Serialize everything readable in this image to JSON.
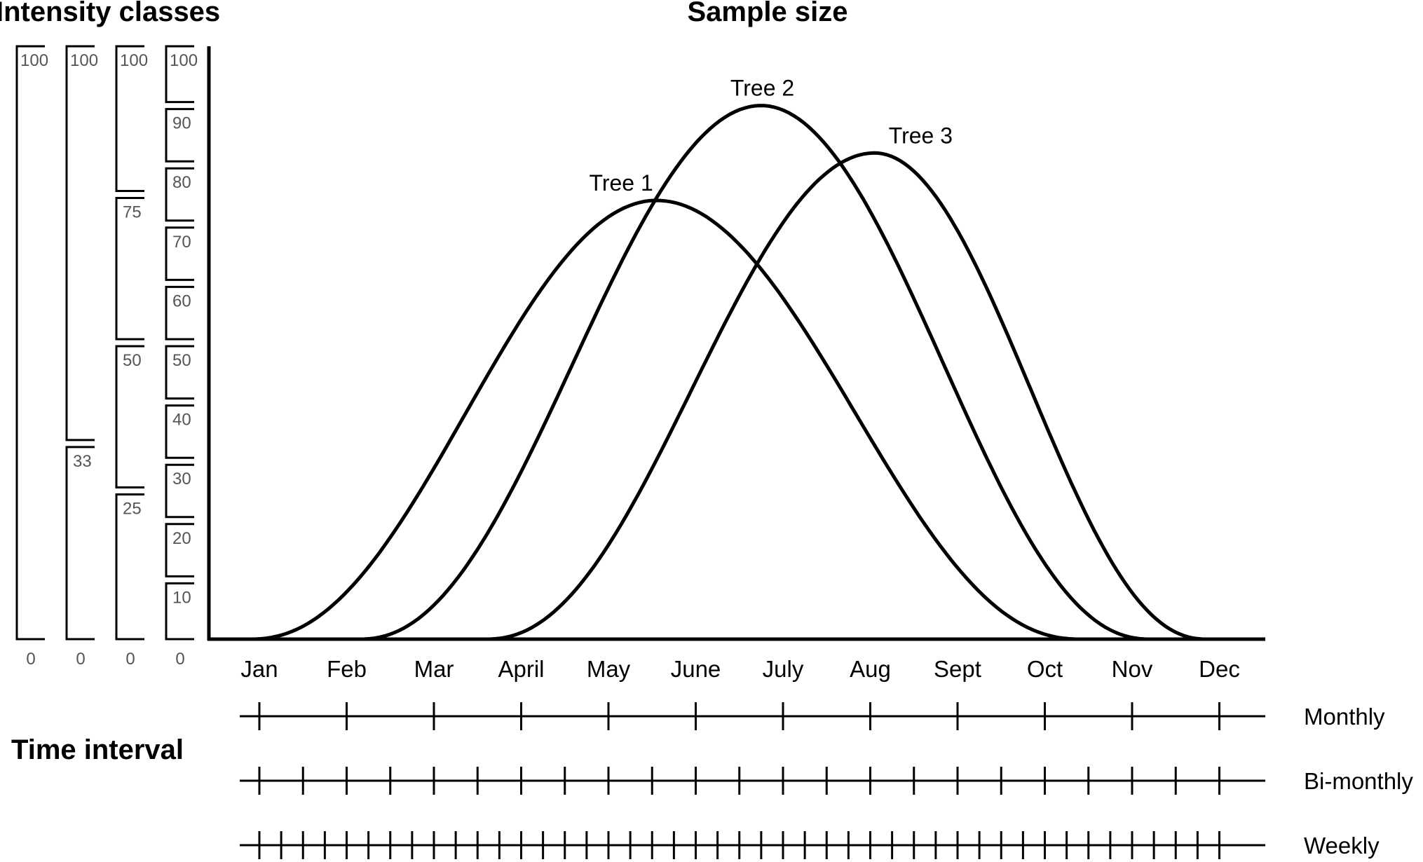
{
  "titles": {
    "intensity_classes": "Intensity classes",
    "sample_size": "Sample size",
    "time_interval": "Time interval"
  },
  "chart_data": {
    "type": "line",
    "title": "Sample size",
    "xlabel": "",
    "ylabel": "",
    "x_months": [
      "Jan",
      "Feb",
      "Mar",
      "April",
      "May",
      "June",
      "July",
      "Aug",
      "Sept",
      "Oct",
      "Nov",
      "Dec"
    ],
    "x_unit": "month index (Jan = 0 … Dec = 11)",
    "ylim": [
      0,
      100
    ],
    "series": [
      {
        "name": "Tree 1",
        "start": -0.1,
        "peak_x": 4.55,
        "peak_y": 74,
        "end": 9.4
      },
      {
        "name": "Tree 2",
        "start": 1.15,
        "peak_x": 5.75,
        "peak_y": 90,
        "end": 10.2
      },
      {
        "name": "Tree 3",
        "start": 2.6,
        "peak_x": 7.05,
        "peak_y": 82,
        "end": 10.85
      }
    ]
  },
  "intensity_scales": [
    {
      "name": "scale-1",
      "classes": [
        100
      ],
      "zero": "0"
    },
    {
      "name": "scale-2",
      "classes": [
        33,
        100
      ],
      "zero": "0"
    },
    {
      "name": "scale-3",
      "classes": [
        25,
        50,
        75,
        100
      ],
      "zero": "0"
    },
    {
      "name": "scale-4",
      "classes": [
        10,
        20,
        30,
        40,
        50,
        60,
        70,
        80,
        90,
        100
      ],
      "zero": "0"
    }
  ],
  "time_intervals": [
    {
      "label": "Monthly",
      "ticks_per_month": 1
    },
    {
      "label": "Bi-monthly",
      "ticks_per_month": 2
    },
    {
      "label": "Weekly",
      "ticks_per_month": 4
    }
  ]
}
